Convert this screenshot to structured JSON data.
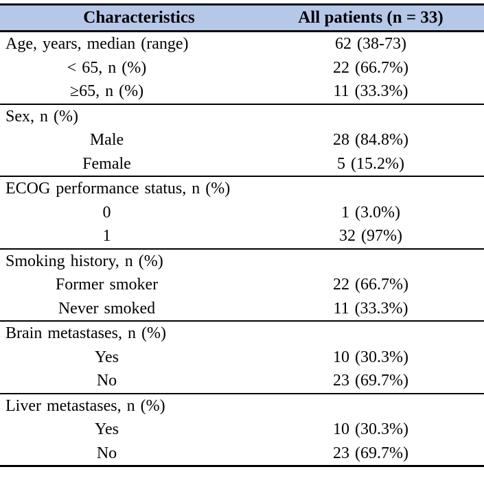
{
  "table": {
    "header_bg": "#b6c8e8",
    "columns": {
      "characteristics": "Characteristics",
      "all_patients": "All patients (n = 33)"
    },
    "sections": [
      {
        "rows": [
          {
            "type": "group",
            "label": "Age, years, median (range)",
            "value": "62 (38-73)"
          },
          {
            "type": "sub",
            "label": "< 65, n (%)",
            "value": "22 (66.7%)"
          },
          {
            "type": "sub",
            "label": "≥65, n (%)",
            "value": "11 (33.3%)"
          }
        ]
      },
      {
        "rows": [
          {
            "type": "group",
            "label": "Sex, n (%)",
            "value": ""
          },
          {
            "type": "sub",
            "label": "Male",
            "value": "28 (84.8%)"
          },
          {
            "type": "sub",
            "label": "Female",
            "value": "5 (15.2%)"
          }
        ]
      },
      {
        "rows": [
          {
            "type": "group",
            "label": "ECOG performance status, n (%)",
            "value": ""
          },
          {
            "type": "sub",
            "label": "0",
            "value": "1 (3.0%)"
          },
          {
            "type": "sub",
            "label": "1",
            "value": "32 (97%)"
          }
        ]
      },
      {
        "rows": [
          {
            "type": "group",
            "label": "Smoking history, n (%)",
            "value": ""
          },
          {
            "type": "sub",
            "label": "Former smoker",
            "value": "22 (66.7%)"
          },
          {
            "type": "sub",
            "label": "Never smoked",
            "value": "11 (33.3%)"
          }
        ]
      },
      {
        "rows": [
          {
            "type": "group",
            "label": "Brain metastases, n (%)",
            "value": ""
          },
          {
            "type": "sub",
            "label": "Yes",
            "value": "10 (30.3%)"
          },
          {
            "type": "sub",
            "label": "No",
            "value": "23 (69.7%)"
          }
        ]
      },
      {
        "rows": [
          {
            "type": "group",
            "label": "Liver metastases, n (%)",
            "value": ""
          },
          {
            "type": "sub",
            "label": "Yes",
            "value": "10 (30.3%)"
          },
          {
            "type": "sub",
            "label": "No",
            "value": "23 (69.7%)"
          }
        ]
      }
    ]
  }
}
